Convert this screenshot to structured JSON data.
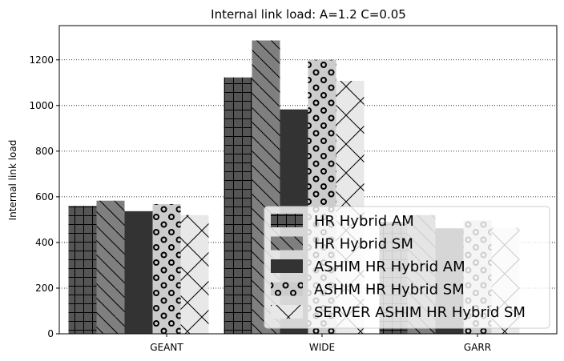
{
  "chart_data": {
    "type": "bar",
    "title": "Internal link load: A=1.2 C=0.05",
    "xlabel": "",
    "ylabel": "Internal link load",
    "categories": [
      "GEANT",
      "WIDE",
      "GARR"
    ],
    "ylim": [
      0,
      1350
    ],
    "yticks": [
      0,
      200,
      400,
      600,
      800,
      1000,
      1200
    ],
    "grid": "horizontal dotted",
    "legend_position": "lower-right",
    "series": [
      {
        "name": "HR Hybrid AM",
        "values": [
          560,
          1123,
          490
        ],
        "color": "#555555",
        "pattern": "grid"
      },
      {
        "name": "HR Hybrid SM",
        "values": [
          583,
          1285,
          520
        ],
        "color": "#7f7f7f",
        "pattern": "backslash"
      },
      {
        "name": "ASHIM HR Hybrid AM",
        "values": [
          537,
          983,
          462
        ],
        "color": "#333333",
        "pattern": "none"
      },
      {
        "name": "ASHIM HR Hybrid SM",
        "values": [
          568,
          1200,
          497
        ],
        "color": "#cccccc",
        "pattern": "circles"
      },
      {
        "name": "SERVER ASHIM HR Hybrid SM",
        "values": [
          520,
          1108,
          465
        ],
        "color": "#e8e8e8",
        "pattern": "cross"
      }
    ]
  }
}
